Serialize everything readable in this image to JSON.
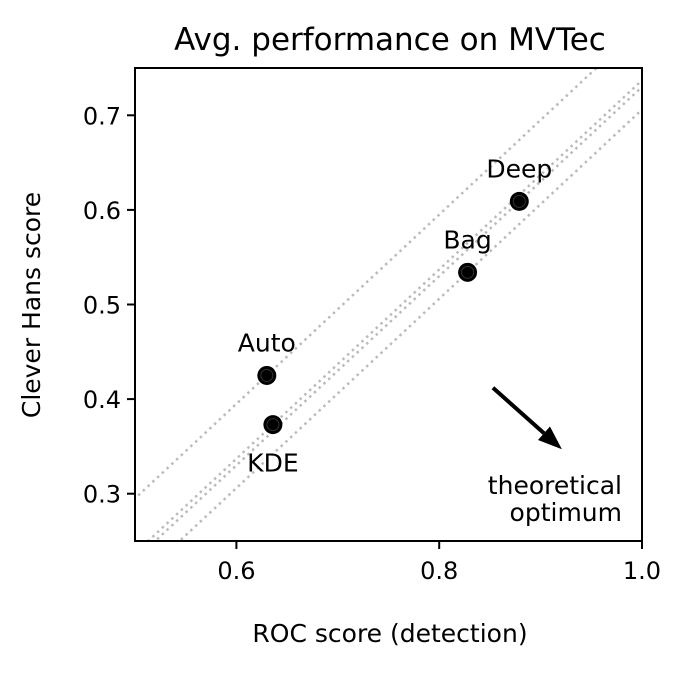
{
  "chart_data": {
    "type": "scatter",
    "title": "Avg. performance on MVTec",
    "xlabel": "ROC score (detection)",
    "ylabel": "Clever Hans score",
    "xlim": [
      0.5,
      1.0
    ],
    "ylim": [
      0.25,
      0.75
    ],
    "xticks": [
      0.6,
      0.8,
      1.0
    ],
    "xtick_labels": [
      "0.6",
      "0.8",
      "1.0"
    ],
    "yticks": [
      0.3,
      0.4,
      0.5,
      0.6,
      0.7
    ],
    "ytick_labels": [
      "0.3",
      "0.4",
      "0.5",
      "0.6",
      "0.7"
    ],
    "grid": false,
    "points": [
      {
        "label": "Deep",
        "x": 0.879,
        "y": 0.609,
        "label_pos": "above"
      },
      {
        "label": "Bag",
        "x": 0.828,
        "y": 0.534,
        "label_pos": "above"
      },
      {
        "label": "Auto",
        "x": 0.63,
        "y": 0.425,
        "label_pos": "above"
      },
      {
        "label": "KDE",
        "x": 0.636,
        "y": 0.373,
        "label_pos": "below"
      }
    ],
    "reference_lines": "dotted gray diagonal lines of slope 1 through each point",
    "annotation": {
      "text_lines": [
        "theoretical",
        "optimum"
      ],
      "arrow_from": {
        "x": 0.853,
        "y": 0.412
      },
      "arrow_to": {
        "x": 0.921,
        "y": 0.347
      }
    },
    "colors": {
      "points": "#000000",
      "reference_lines": "#bbbbbb"
    }
  }
}
